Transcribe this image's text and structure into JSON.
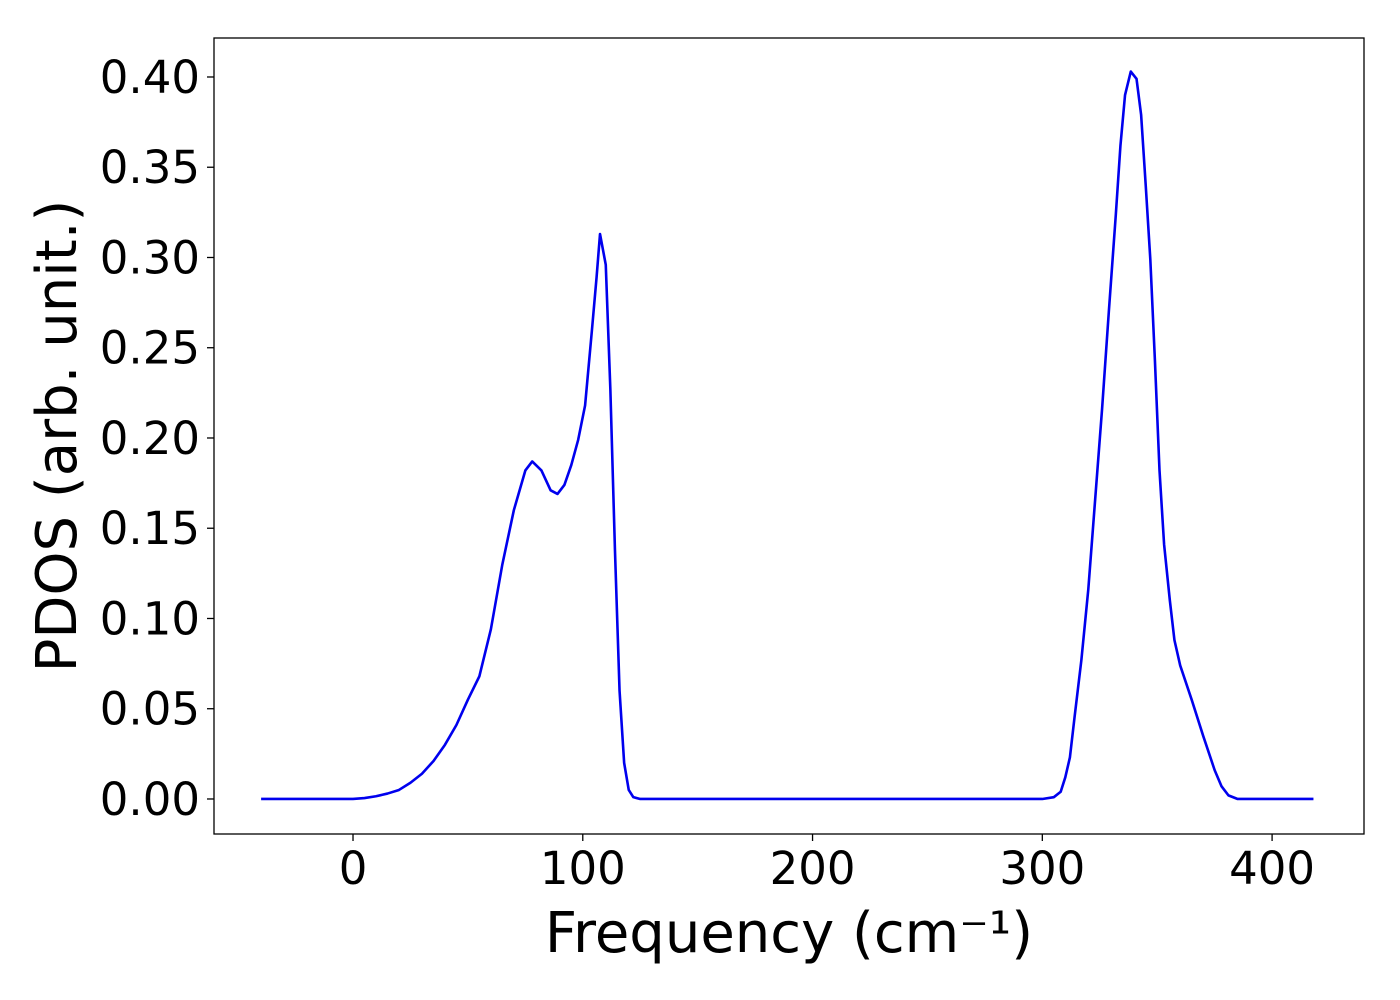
{
  "chart_data": {
    "type": "line",
    "x_label": "Frequency (cm⁻¹)",
    "y_label": "PDOS (arb. unit.)",
    "x": [
      -40,
      0,
      5,
      10,
      15,
      20,
      25,
      30,
      35,
      40,
      45,
      50,
      55,
      60,
      65,
      70,
      75,
      78,
      82,
      86,
      89,
      92,
      95,
      98,
      101,
      104,
      106,
      107.5,
      110,
      112,
      114,
      116,
      118,
      120,
      122,
      125,
      300,
      305,
      308,
      310,
      312,
      314,
      317,
      320,
      323,
      326,
      329,
      332,
      334,
      336,
      338.5,
      341,
      343,
      345,
      347,
      349,
      351,
      353,
      355.5,
      357.5,
      360,
      365,
      370,
      375,
      378,
      381,
      385,
      418
    ],
    "series": [
      {
        "name": "PDOS",
        "color": "#0000ee",
        "values": [
          0,
          0,
          0.0005,
          0.0015,
          0.003,
          0.005,
          0.009,
          0.014,
          0.021,
          0.03,
          0.041,
          0.055,
          0.068,
          0.094,
          0.13,
          0.16,
          0.182,
          0.187,
          0.182,
          0.171,
          0.169,
          0.174,
          0.185,
          0.199,
          0.218,
          0.26,
          0.289,
          0.313,
          0.296,
          0.227,
          0.138,
          0.06,
          0.02,
          0.005,
          0.001,
          0,
          0,
          0.001,
          0.004,
          0.012,
          0.023,
          0.045,
          0.077,
          0.116,
          0.166,
          0.216,
          0.271,
          0.324,
          0.362,
          0.39,
          0.403,
          0.399,
          0.379,
          0.34,
          0.299,
          0.243,
          0.182,
          0.141,
          0.11,
          0.088,
          0.074,
          0.055,
          0.035,
          0.016,
          0.007,
          0.002,
          0,
          0
        ]
      }
    ],
    "xlim": [
      -60.5,
      440
    ],
    "ylim": [
      -0.0194,
      0.4216
    ],
    "xticks": [
      0,
      100,
      200,
      300,
      400
    ],
    "yticks": [
      {
        "value": 0,
        "label": "0.00"
      },
      {
        "value": 0.05,
        "label": "0.05"
      },
      {
        "value": 0.1,
        "label": "0.10"
      },
      {
        "value": 0.15,
        "label": "0.15"
      },
      {
        "value": 0.2,
        "label": "0.20"
      },
      {
        "value": 0.25,
        "label": "0.25"
      },
      {
        "value": 0.3,
        "label": "0.30"
      },
      {
        "value": 0.35,
        "label": "0.35"
      },
      {
        "value": 0.4,
        "label": "0.40"
      }
    ],
    "grid": false
  }
}
